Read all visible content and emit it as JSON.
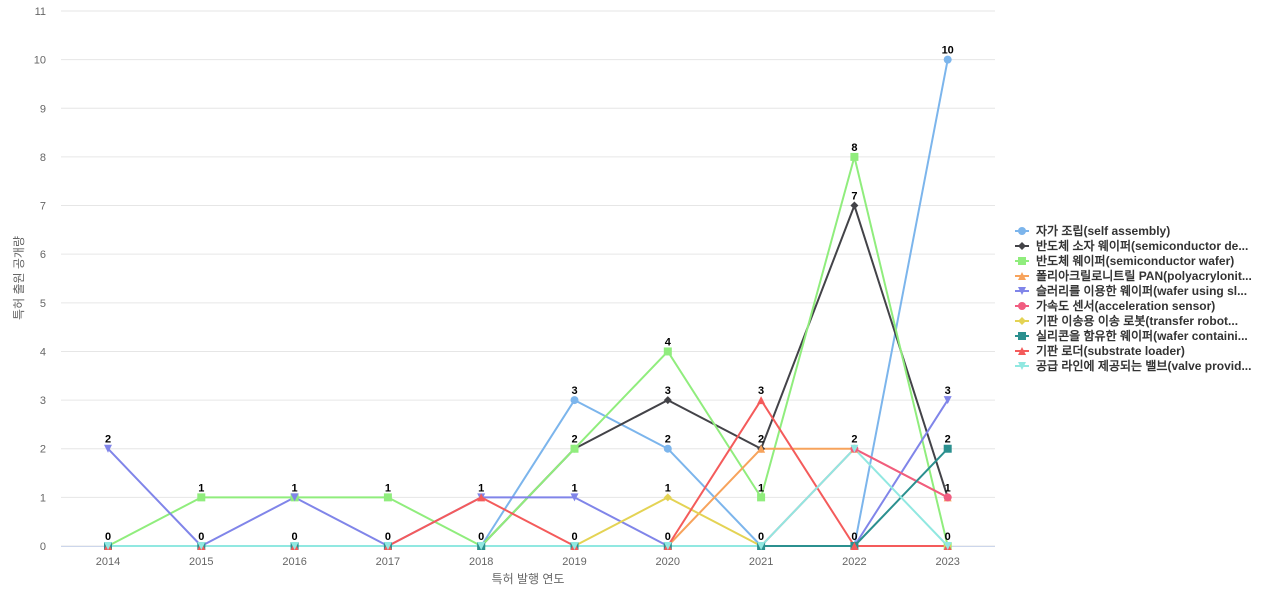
{
  "chart_data": {
    "type": "line",
    "title": "",
    "xlabel": "특허 발행 연도",
    "ylabel": "특허 출원 공개량",
    "ylim": [
      0,
      11
    ],
    "yticks": [
      0,
      1,
      2,
      3,
      4,
      5,
      6,
      7,
      8,
      9,
      10,
      11
    ],
    "categories": [
      "2014",
      "2015",
      "2016",
      "2017",
      "2018",
      "2019",
      "2020",
      "2021",
      "2022",
      "2023"
    ],
    "grid": true,
    "legend_position": "right",
    "series": [
      {
        "name": "자가 조립(self assembly)",
        "color": "#7cb5ec",
        "marker": "circle",
        "values": [
          0,
          0,
          0,
          0,
          0,
          3,
          2,
          0,
          0,
          10
        ]
      },
      {
        "name": "반도체 소자 웨이퍼(semiconductor de...",
        "color": "#434348",
        "marker": "diamond",
        "values": [
          0,
          0,
          0,
          0,
          0,
          2,
          3,
          2,
          7,
          1
        ]
      },
      {
        "name": "반도체 웨이퍼(semiconductor wafer)",
        "color": "#90ed7d",
        "marker": "square",
        "values": [
          0,
          1,
          1,
          1,
          0,
          2,
          4,
          1,
          8,
          0
        ]
      },
      {
        "name": "폴리아크릴로니트릴 PAN(polyacrylonit...",
        "color": "#f7a35c",
        "marker": "triangle",
        "values": [
          0,
          0,
          0,
          0,
          0,
          0,
          0,
          2,
          2,
          1
        ]
      },
      {
        "name": "슬러리를 이용한 웨이퍼(wafer using sl...",
        "color": "#8085e9",
        "marker": "triangle-down",
        "values": [
          2,
          0,
          1,
          0,
          1,
          1,
          0,
          0,
          0,
          3
        ]
      },
      {
        "name": "가속도 센서(acceleration sensor)",
        "color": "#f15c80",
        "marker": "circle",
        "values": [
          0,
          0,
          0,
          0,
          0,
          0,
          0,
          0,
          2,
          1
        ]
      },
      {
        "name": "기판 이송용 이송 로봇(transfer robot...",
        "color": "#e4d354",
        "marker": "diamond",
        "values": [
          0,
          0,
          0,
          0,
          0,
          0,
          1,
          0,
          0,
          0
        ]
      },
      {
        "name": "실리콘을 함유한 웨이퍼(wafer containi...",
        "color": "#2b908f",
        "marker": "square",
        "values": [
          0,
          0,
          0,
          0,
          0,
          0,
          0,
          0,
          0,
          2
        ]
      },
      {
        "name": "기판 로더(substrate loader)",
        "color": "#f45b5b",
        "marker": "triangle",
        "values": [
          0,
          0,
          0,
          0,
          1,
          0,
          0,
          3,
          0,
          0
        ]
      },
      {
        "name": "공급 라인에 제공되는 밸브(valve provid...",
        "color": "#91e8e1",
        "marker": "triangle-down",
        "values": [
          0,
          0,
          0,
          0,
          0,
          0,
          0,
          0,
          2,
          0
        ]
      }
    ],
    "data_labels": [
      {
        "x": "2014",
        "y": 2,
        "text": "2"
      },
      {
        "x": "2014",
        "y": 0,
        "text": "0"
      },
      {
        "x": "2015",
        "y": 1,
        "text": "1"
      },
      {
        "x": "2015",
        "y": 0,
        "text": "0"
      },
      {
        "x": "2016",
        "y": 1,
        "text": "1"
      },
      {
        "x": "2016",
        "y": 0,
        "text": "0"
      },
      {
        "x": "2017",
        "y": 1,
        "text": "1"
      },
      {
        "x": "2017",
        "y": 0,
        "text": "0"
      },
      {
        "x": "2018",
        "y": 1,
        "text": "1"
      },
      {
        "x": "2018",
        "y": 0,
        "text": "0"
      },
      {
        "x": "2019",
        "y": 3,
        "text": "3"
      },
      {
        "x": "2019",
        "y": 2,
        "text": "2"
      },
      {
        "x": "2019",
        "y": 1,
        "text": "1"
      },
      {
        "x": "2019",
        "y": 0,
        "text": "0"
      },
      {
        "x": "2020",
        "y": 4,
        "text": "4"
      },
      {
        "x": "2020",
        "y": 3,
        "text": "3"
      },
      {
        "x": "2020",
        "y": 2,
        "text": "2"
      },
      {
        "x": "2020",
        "y": 1,
        "text": "1"
      },
      {
        "x": "2020",
        "y": 0,
        "text": "0"
      },
      {
        "x": "2021",
        "y": 3,
        "text": "3"
      },
      {
        "x": "2021",
        "y": 2,
        "text": "2"
      },
      {
        "x": "2021",
        "y": 1,
        "text": "1"
      },
      {
        "x": "2021",
        "y": 0,
        "text": "0"
      },
      {
        "x": "2022",
        "y": 8,
        "text": "8"
      },
      {
        "x": "2022",
        "y": 7,
        "text": "7"
      },
      {
        "x": "2022",
        "y": 2,
        "text": "2"
      },
      {
        "x": "2022",
        "y": 0,
        "text": "0"
      },
      {
        "x": "2023",
        "y": 10,
        "text": "10"
      },
      {
        "x": "2023",
        "y": 3,
        "text": "3"
      },
      {
        "x": "2023",
        "y": 2,
        "text": "2"
      },
      {
        "x": "2023",
        "y": 1,
        "text": "1"
      },
      {
        "x": "2023",
        "y": 0,
        "text": "0"
      }
    ]
  }
}
